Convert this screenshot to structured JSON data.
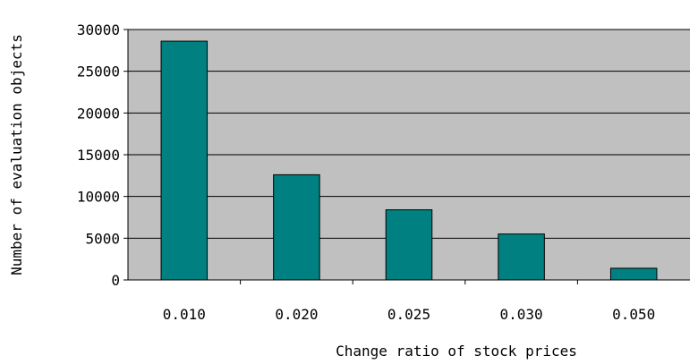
{
  "chart_data": {
    "type": "bar",
    "title": "",
    "xlabel": "Change ratio of stock prices",
    "ylabel": "Number of evaluation objects",
    "categories": [
      "0.010",
      "0.020",
      "0.025",
      "0.030",
      "0.050"
    ],
    "values": [
      28600,
      12600,
      8400,
      5500,
      1400
    ],
    "ylim": [
      0,
      30000
    ],
    "yticks": [
      "0",
      "5000",
      "10000",
      "15000",
      "20000",
      "25000",
      "30000"
    ],
    "grid": true,
    "legend": "none",
    "colors": {
      "bar": "#008080",
      "plot_background": "#c0c0c0",
      "gridline": "#000000"
    }
  }
}
